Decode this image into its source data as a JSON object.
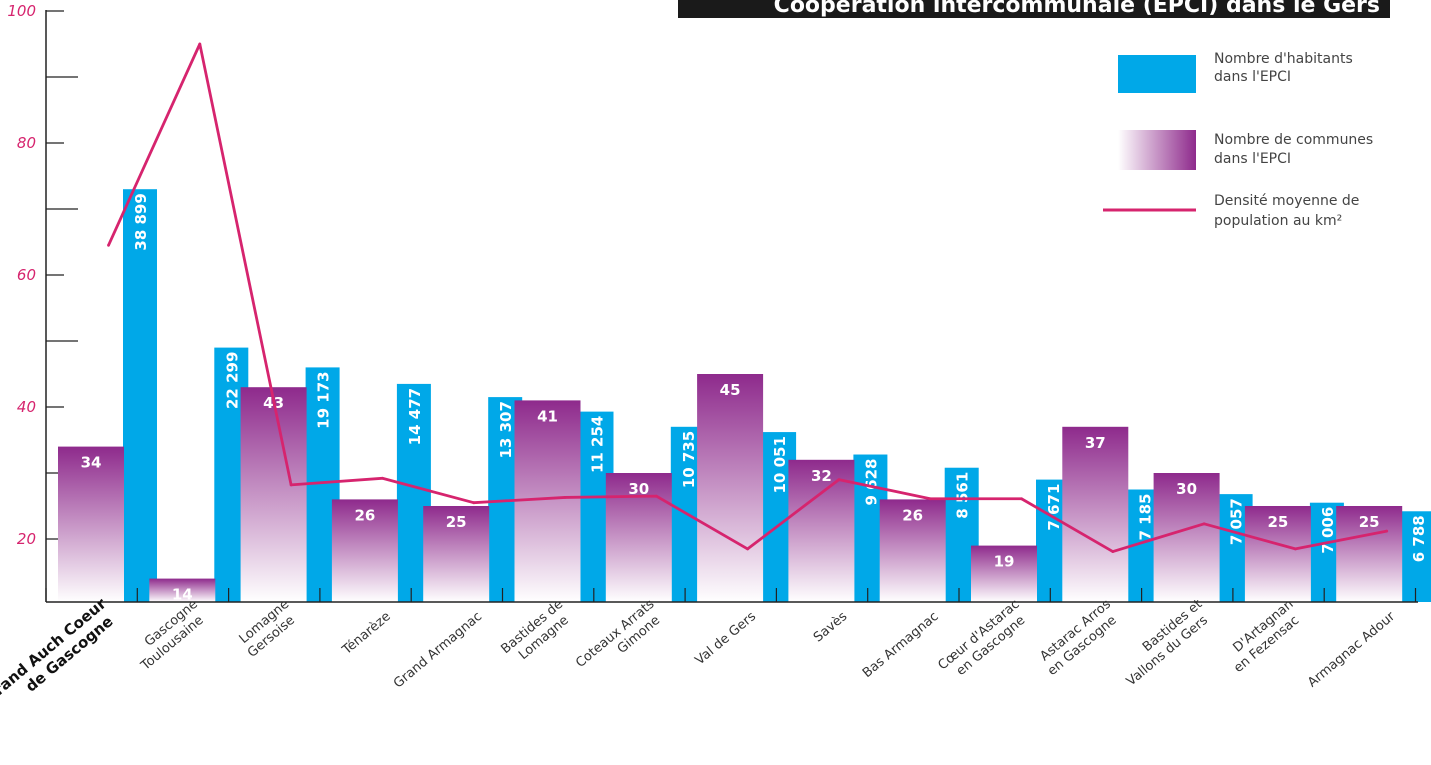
{
  "chart_data": {
    "type": "bar",
    "title": "Coopération intercommunale (EPCI) dans le Gers",
    "y_ticks": [
      "20",
      "40",
      "60",
      "80",
      "100"
    ],
    "ylim": [
      10,
      100
    ],
    "grid": false,
    "legend_position": "top-right",
    "categories": [
      [
        "Grand Auch Coeur",
        "de Gascogne"
      ],
      [
        "Gascogne",
        "Toulousaine"
      ],
      [
        "Lomagne",
        "Gersoise"
      ],
      [
        "Ténarèze"
      ],
      [
        "Grand Armagnac"
      ],
      [
        "Bastides de",
        "Lomagne"
      ],
      [
        "Coteaux Arrats",
        "Gimone"
      ],
      [
        "Val de Gers"
      ],
      [
        "Savès"
      ],
      [
        "Bas Armagnac"
      ],
      [
        "Cœur d'Astarac",
        "en Gascogne"
      ],
      [
        "Astarac Arros",
        "en Gascogne"
      ],
      [
        "Bastides et",
        "Vallons du Gers"
      ],
      [
        "D'Artagnan",
        "en Fezensac"
      ],
      [
        "Armagnac Adour"
      ]
    ],
    "series": [
      {
        "name": "Nombre de communes dans l'EPCI",
        "values": [
          34,
          14,
          43,
          26,
          25,
          41,
          30,
          45,
          32,
          26,
          19,
          37,
          30,
          25,
          25
        ],
        "labels": [
          "34",
          "14",
          "43",
          "26",
          "25",
          "41",
          "30",
          "45",
          "32",
          "26",
          "19",
          "37",
          "30",
          "25",
          "25"
        ]
      },
      {
        "name": "Nombre d'habitants dans l'EPCI",
        "values": [
          38899,
          22299,
          19173,
          14477,
          13307,
          11254,
          10735,
          10051,
          9628,
          8561,
          7671,
          7185,
          7057,
          7006,
          6788
        ],
        "labels": [
          "38 899",
          "22 299",
          "19 173",
          "14 477",
          "13 307",
          "11 254",
          "10 735",
          "10 051",
          "9 628",
          "8 561",
          "7 671",
          "7 185",
          "7 057",
          "7 006",
          "6 788"
        ],
        "y_axis_equiv": [
          73,
          49,
          46,
          43.5,
          41.5,
          39.3,
          37,
          36.2,
          32.8,
          30.8,
          29,
          27.5,
          26.8,
          25.5,
          24.2
        ]
      },
      {
        "name": "Densité moyenne de population au km²",
        "type": "line",
        "values": [
          64.5,
          95,
          28.2,
          29.2,
          25.5,
          26.3,
          26.5,
          18.5,
          29,
          26.1,
          26.1,
          18.1,
          22.3,
          18.5,
          21.2
        ]
      }
    ],
    "legend": [
      {
        "lines": [
          "Nombre d'habitants",
          "dans l'EPCI"
        ],
        "kind": "blue"
      },
      {
        "lines": [
          "Nombre de communes",
          "dans l'EPCI"
        ],
        "kind": "purple"
      },
      {
        "lines": [
          "Densité moyenne de",
          "population au km²"
        ],
        "kind": "line"
      }
    ],
    "colors": {
      "blue": "#00a8e8",
      "purple_top": "#8e2a8c",
      "purple_bottom": "#ffffff",
      "line": "#d6246e",
      "axis": "#222222",
      "tick_label": "#d6246e",
      "title_bg": "#1a1a1a"
    }
  }
}
